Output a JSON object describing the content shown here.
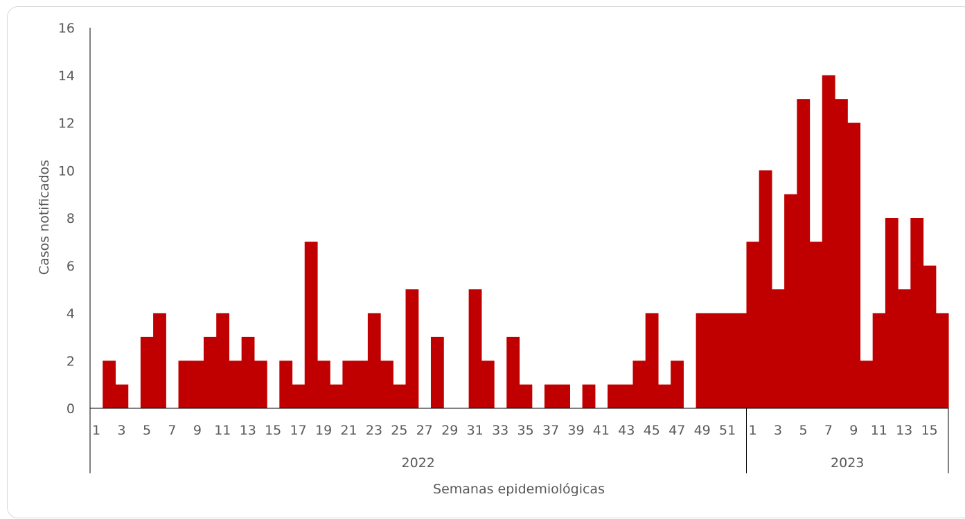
{
  "chart_data": {
    "type": "bar",
    "xlabel": "Semanas epidemiológicas",
    "ylabel": "Casos notificados",
    "ylim": [
      0,
      16
    ],
    "yticks": [
      0,
      2,
      4,
      6,
      8,
      10,
      12,
      14,
      16
    ],
    "bar_color": "#c00000",
    "grid": false,
    "groups": [
      {
        "label": "2022",
        "weeks": [
          1,
          2,
          3,
          4,
          5,
          6,
          7,
          8,
          9,
          10,
          11,
          12,
          13,
          14,
          15,
          16,
          17,
          18,
          19,
          20,
          21,
          22,
          23,
          24,
          25,
          26,
          27,
          28,
          29,
          30,
          31,
          32,
          33,
          34,
          35,
          36,
          37,
          38,
          39,
          40,
          41,
          42,
          43,
          44,
          45,
          46,
          47,
          48,
          49,
          50,
          51,
          52
        ],
        "values": [
          0,
          2,
          1,
          0,
          3,
          4,
          0,
          2,
          2,
          3,
          4,
          2,
          3,
          2,
          0,
          2,
          1,
          7,
          2,
          1,
          2,
          2,
          4,
          2,
          1,
          5,
          0,
          3,
          0,
          0,
          5,
          2,
          0,
          3,
          1,
          0,
          1,
          1,
          0,
          1,
          0,
          1,
          1,
          2,
          4,
          1,
          2,
          0,
          4,
          4,
          4,
          4
        ],
        "tick_labels": [
          "1",
          "3",
          "5",
          "7",
          "9",
          "11",
          "13",
          "15",
          "17",
          "19",
          "21",
          "23",
          "25",
          "27",
          "29",
          "31",
          "33",
          "35",
          "37",
          "39",
          "41",
          "43",
          "45",
          "47",
          "49",
          "51"
        ]
      },
      {
        "label": "2023",
        "weeks": [
          1,
          2,
          3,
          4,
          5,
          6,
          7,
          8,
          9,
          10,
          11,
          12,
          13,
          14,
          15,
          16
        ],
        "values": [
          7,
          10,
          5,
          9,
          13,
          7,
          14,
          13,
          12,
          2,
          4,
          8,
          5,
          8,
          6,
          4
        ],
        "tick_labels": [
          "1",
          "3",
          "5",
          "7",
          "9",
          "11",
          "13",
          "15"
        ]
      }
    ]
  }
}
